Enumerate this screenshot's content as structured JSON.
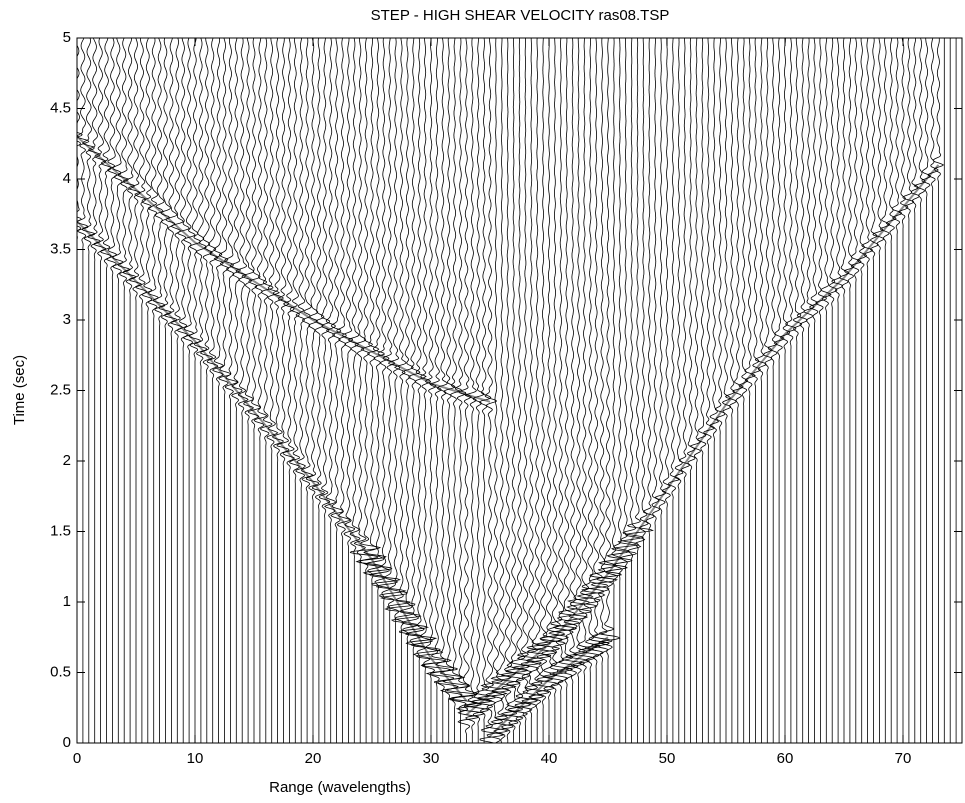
{
  "chart_data": {
    "type": "wiggle",
    "title": "STEP - HIGH SHEAR VELOCITY ras08.TSP",
    "xlabel": "Range (wavelengths)",
    "ylabel": "Time (sec)",
    "xlim": [
      0,
      75
    ],
    "ylim": [
      0,
      5
    ],
    "xticks": [
      0,
      10,
      20,
      30,
      40,
      50,
      60,
      70
    ],
    "yticks": [
      0,
      0.5,
      1,
      1.5,
      2,
      2.5,
      3,
      3.5,
      4,
      4.5,
      5
    ],
    "color": "#000000",
    "series": [
      {
        "color": "#000000",
        "x": [
          0,
          10,
          20,
          25,
          30,
          33
        ],
        "values": [
          3.7,
          2.85,
          1.85,
          1.3,
          0.6,
          0.3
        ]
      },
      {
        "color": "#000000",
        "x": [
          0,
          10,
          20,
          30,
          35
        ],
        "values": [
          4.3,
          3.55,
          3.0,
          2.55,
          2.42
        ]
      },
      {
        "color": "#000000",
        "x": [
          33,
          40,
          45,
          50,
          55,
          60,
          65,
          70,
          73
        ],
        "values": [
          0.2,
          0.7,
          1.2,
          1.8,
          2.4,
          2.9,
          3.3,
          3.8,
          4.1
        ]
      },
      {
        "color": "#000000",
        "x": [
          35,
          40,
          45
        ],
        "values": [
          0.05,
          0.45,
          0.75
        ]
      }
    ]
  }
}
